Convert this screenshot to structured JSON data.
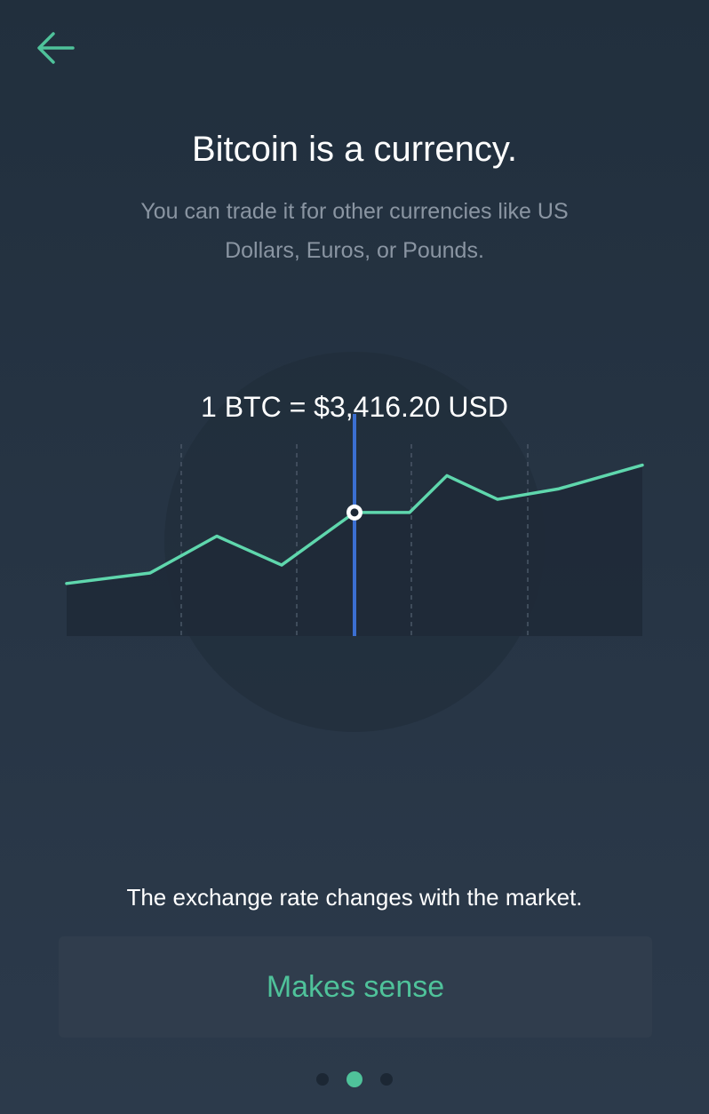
{
  "colors": {
    "background_top": "#212f3d",
    "background_bottom": "#2c3a4b",
    "accent": "#4fc29a",
    "line": "#5fd7ad",
    "cursor": "#3b6fd1",
    "text_primary": "#ffffff",
    "text_secondary": "#8a95a2"
  },
  "header": {
    "back_icon": "arrow-left-icon"
  },
  "content": {
    "title": "Bitcoin is a currency.",
    "subtitle": "You can trade it for other currencies like US Dollars, Euros, or Pounds.",
    "rate_label": "1 BTC = $3,416.20 USD",
    "caption": "The exchange rate changes with the market."
  },
  "chart_data": {
    "type": "line",
    "x": [
      0,
      1,
      2,
      3,
      4,
      5,
      6,
      7,
      8,
      9
    ],
    "values": [
      0.2,
      0.24,
      0.38,
      0.27,
      0.47,
      0.47,
      0.61,
      0.52,
      0.56,
      0.65
    ],
    "selected_index": 4,
    "ylim": [
      0,
      1
    ],
    "xlabel": "",
    "ylabel": "",
    "title": "",
    "grid": false
  },
  "footer": {
    "cta_label": "Makes sense",
    "page_count": 3,
    "current_page": 2
  }
}
